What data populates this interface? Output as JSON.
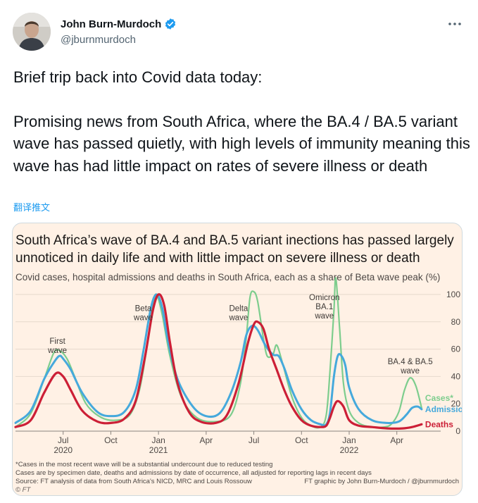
{
  "tweet": {
    "author_name": "John Burn-Murdoch",
    "handle": "@jburnmurdoch",
    "paragraphs": [
      "Brief trip back into Covid data today:",
      "Promising news from South Africa, where the BA.4 / BA.5 variant wave has passed quietly, with high levels of immunity meaning this wave has had little impact on rates of severe illness or death"
    ],
    "translate_label": "翻译推文"
  },
  "icons": {
    "verified": "verified-badge-icon",
    "more": "more-options-icon"
  },
  "colors": {
    "cases": "#7dcd8d",
    "admissions": "#45a9dc",
    "deaths": "#cc1f36",
    "card_bg": "#fff1e5",
    "link": "#1d9bf0"
  },
  "chart_data": {
    "type": "line",
    "title_lines": [
      "South Africa’s wave of BA.4 and BA.5 variant inections has passed largely",
      "unnoticed in daily life and with little impact on severe illness or death"
    ],
    "subtitle": "Covid cases, hospital admissions and deaths in South Africa, each as a share of Beta wave peak (%)",
    "ylabel": "",
    "ylim": [
      0,
      100
    ],
    "y_ticks": [
      "0",
      "20",
      "40",
      "60",
      "80",
      "100"
    ],
    "x_range": [
      2020.25,
      2022.48
    ],
    "x_ticks": [
      {
        "x": 2020.5,
        "label": "Jul",
        "year": "2020"
      },
      {
        "x": 2020.75,
        "label": "Oct",
        "year": ""
      },
      {
        "x": 2021.0,
        "label": "Jan",
        "year": "2021"
      },
      {
        "x": 2021.25,
        "label": "Apr",
        "year": ""
      },
      {
        "x": 2021.5,
        "label": "Jul",
        "year": ""
      },
      {
        "x": 2021.75,
        "label": "Oct",
        "year": ""
      },
      {
        "x": 2022.0,
        "label": "Jan",
        "year": "2022"
      },
      {
        "x": 2022.25,
        "label": "Apr",
        "year": ""
      }
    ],
    "wave_labels": [
      {
        "lines": [
          "First",
          "wave"
        ],
        "x": 2020.47,
        "y": 64
      },
      {
        "lines": [
          "Beta",
          "wave"
        ],
        "x": 2020.92,
        "y": 88
      },
      {
        "lines": [
          "Delta",
          "wave"
        ],
        "x": 2021.42,
        "y": 88
      },
      {
        "lines": [
          "Omicron",
          "BA.1",
          "wave"
        ],
        "x": 2021.87,
        "y": 96
      },
      {
        "lines": [
          "BA.4 & BA.5",
          "wave"
        ],
        "x": 2022.32,
        "y": 49
      }
    ],
    "series": [
      {
        "name": "Cases*",
        "x": [
          2020.25,
          2020.33,
          2020.4,
          2020.45,
          2020.48,
          2020.52,
          2020.56,
          2020.62,
          2020.7,
          2020.78,
          2020.85,
          2020.9,
          2020.94,
          2020.97,
          2020.99,
          2021.02,
          2021.06,
          2021.12,
          2021.2,
          2021.3,
          2021.38,
          2021.43,
          2021.46,
          2021.48,
          2021.5,
          2021.52,
          2021.55,
          2021.57,
          2021.6,
          2021.62,
          2021.65,
          2021.7,
          2021.75,
          2021.8,
          2021.85,
          2021.88,
          2021.9,
          2021.92,
          2021.93,
          2021.95,
          2021.97,
          2022.0,
          2022.05,
          2022.12,
          2022.18,
          2022.22,
          2022.26,
          2022.29,
          2022.32,
          2022.35,
          2022.38
        ],
        "values": [
          3,
          13,
          38,
          57,
          59,
          53,
          40,
          20,
          10,
          8,
          12,
          30,
          62,
          92,
          100,
          85,
          55,
          25,
          10,
          7,
          12,
          35,
          68,
          98,
          102,
          95,
          68,
          55,
          56,
          63,
          50,
          25,
          10,
          4,
          3,
          12,
          45,
          88,
          112,
          75,
          35,
          15,
          6,
          3,
          3,
          5,
          14,
          30,
          39,
          33,
          17
        ]
      },
      {
        "name": "Admissions",
        "x": [
          2020.25,
          2020.33,
          2020.4,
          2020.45,
          2020.48,
          2020.5,
          2020.54,
          2020.6,
          2020.68,
          2020.75,
          2020.82,
          2020.88,
          2020.92,
          2020.96,
          2020.99,
          2021.02,
          2021.05,
          2021.1,
          2021.18,
          2021.25,
          2021.32,
          2021.38,
          2021.43,
          2021.46,
          2021.49,
          2021.52,
          2021.56,
          2021.6,
          2021.63,
          2021.66,
          2021.7,
          2021.75,
          2021.8,
          2021.85,
          2021.88,
          2021.9,
          2021.92,
          2021.94,
          2021.96,
          2021.98,
          2022.0,
          2022.05,
          2022.12,
          2022.2,
          2022.26,
          2022.3,
          2022.33,
          2022.36,
          2022.38
        ],
        "values": [
          6,
          15,
          38,
          50,
          55,
          53,
          45,
          28,
          14,
          11,
          14,
          30,
          58,
          90,
          100,
          90,
          66,
          38,
          18,
          11,
          13,
          28,
          50,
          70,
          77,
          74,
          63,
          56,
          55,
          46,
          30,
          16,
          8,
          5,
          5,
          14,
          40,
          55,
          55,
          48,
          32,
          16,
          8,
          6,
          7,
          12,
          17,
          18,
          16
        ]
      },
      {
        "name": "Deaths",
        "x": [
          2020.25,
          2020.33,
          2020.4,
          2020.46,
          2020.5,
          2020.54,
          2020.6,
          2020.68,
          2020.75,
          2020.82,
          2020.88,
          2020.93,
          2020.97,
          2021.0,
          2021.03,
          2021.06,
          2021.1,
          2021.16,
          2021.22,
          2021.3,
          2021.36,
          2021.42,
          2021.47,
          2021.5,
          2021.52,
          2021.55,
          2021.58,
          2021.62,
          2021.66,
          2021.7,
          2021.75,
          2021.8,
          2021.85,
          2021.88,
          2021.9,
          2021.92,
          2021.94,
          2021.97,
          2022.0,
          2022.05,
          2022.12,
          2022.2,
          2022.28,
          2022.33,
          2022.38
        ],
        "values": [
          3,
          8,
          28,
          42,
          40,
          30,
          15,
          7,
          6,
          9,
          22,
          55,
          88,
          100,
          92,
          65,
          35,
          14,
          7,
          6,
          12,
          35,
          65,
          78,
          80,
          75,
          60,
          45,
          30,
          18,
          8,
          4,
          3,
          4,
          10,
          18,
          22,
          18,
          8,
          4,
          3,
          2,
          2,
          3,
          5
        ]
      }
    ],
    "footnotes": [
      "*Cases in the most recent wave will be a substantial undercount due to reduced testing",
      "Cases are by specimen date, deaths and admissions by date of occurrence, all adjusted for reporting lags in recent days"
    ],
    "source": "Source: FT analysis of data from South Africa's NICD, MRC and Louis Rossouw",
    "credit": "FT graphic by John Burn-Murdoch / @jburnmurdoch",
    "brand": "© FT"
  }
}
